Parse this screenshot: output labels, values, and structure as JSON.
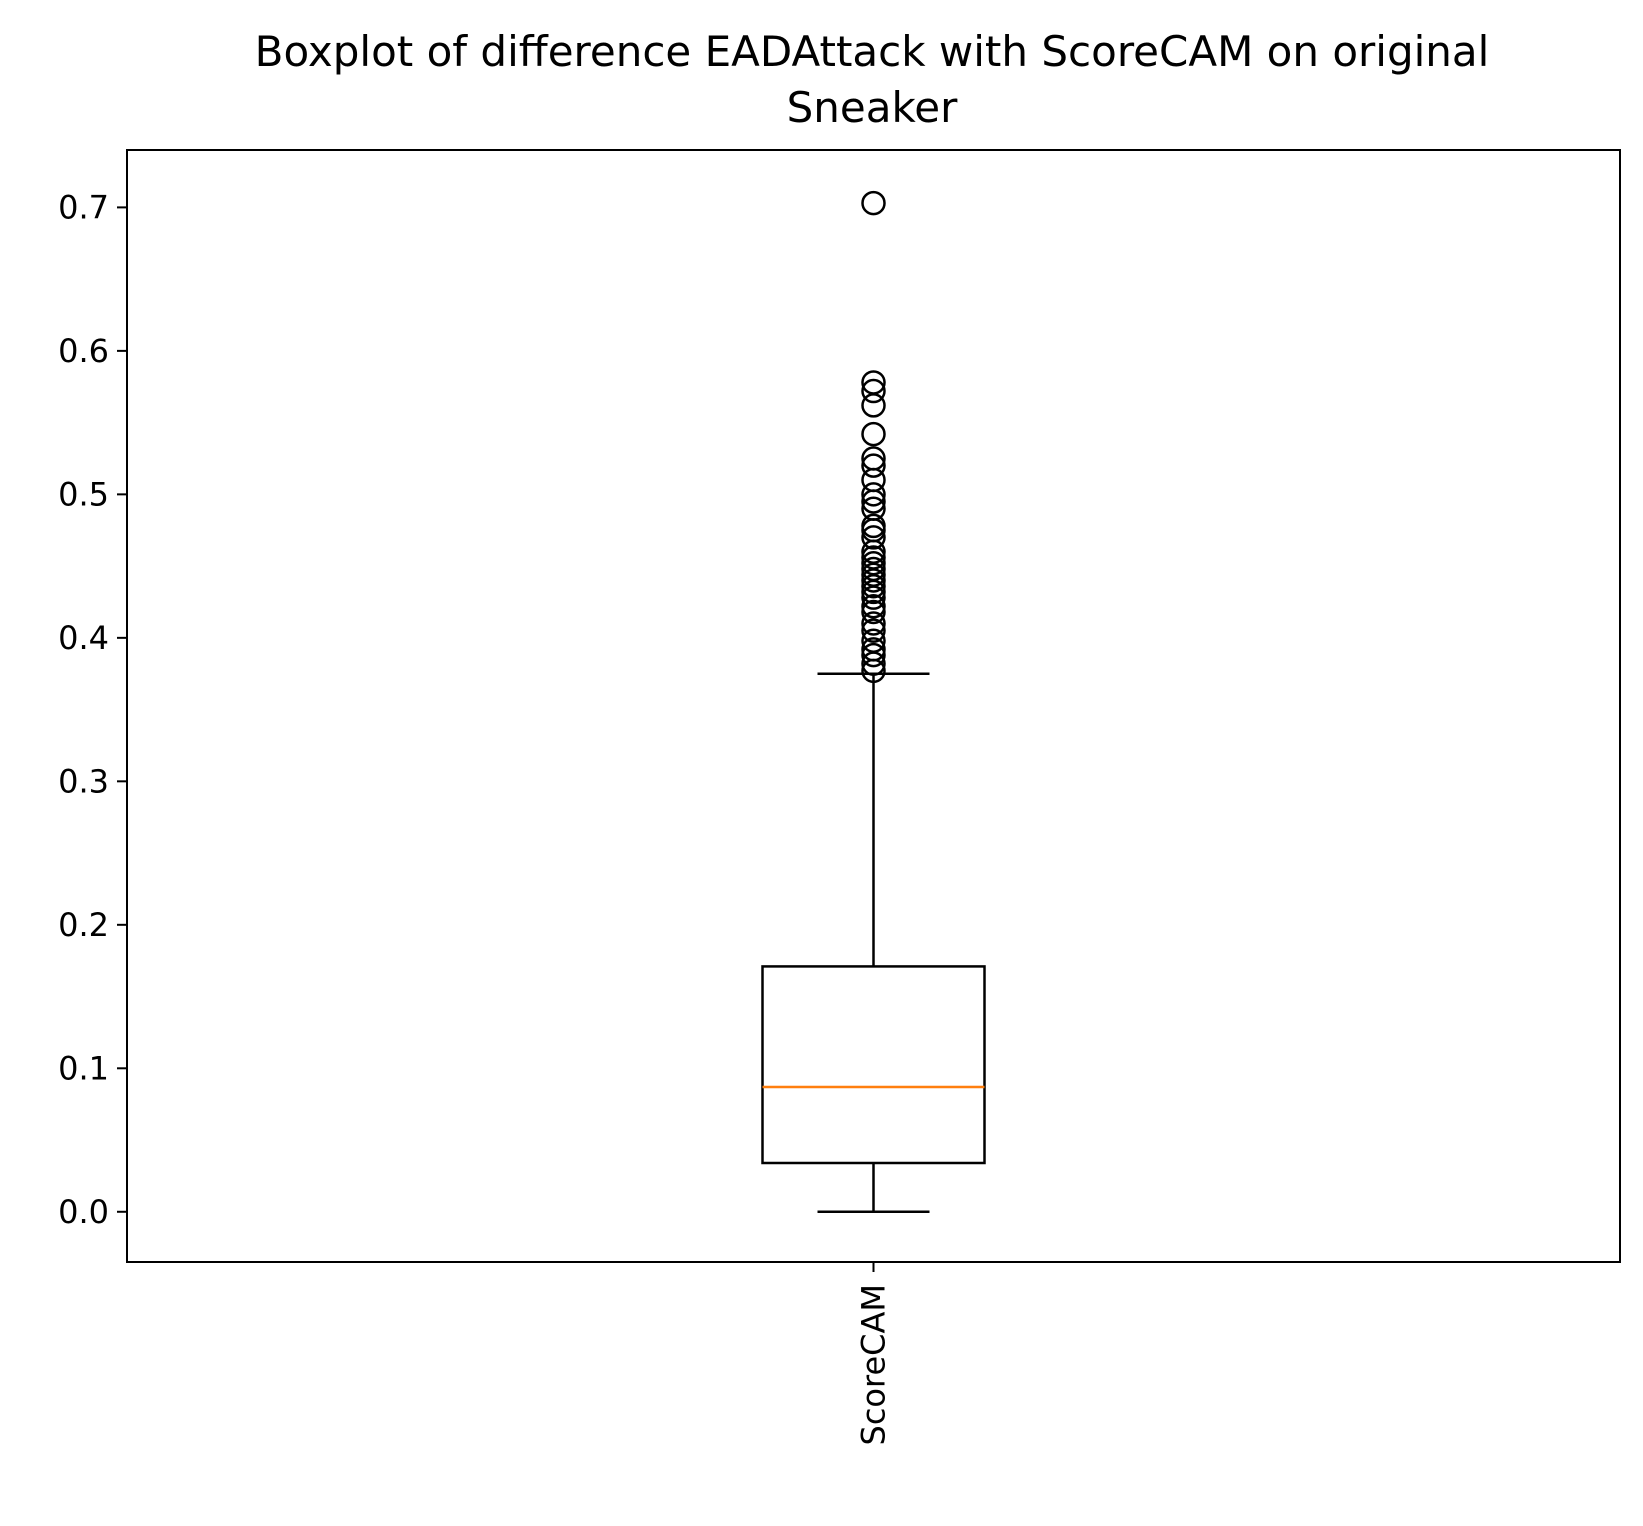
{
  "chart_data": {
    "type": "boxplot",
    "title_line1": "Boxplot of difference EADAttack with ScoreCAM on original",
    "title_line2": "Sneaker",
    "xlabel": "",
    "ylabel": "",
    "categories": [
      "ScoreCAM"
    ],
    "ylim": [
      -0.035,
      0.74
    ],
    "yticks": [
      0.0,
      0.1,
      0.2,
      0.3,
      0.4,
      0.5,
      0.6,
      0.7
    ],
    "ytick_labels": [
      "0.0",
      "0.1",
      "0.2",
      "0.3",
      "0.4",
      "0.5",
      "0.6",
      "0.7"
    ],
    "boxes": [
      {
        "label": "ScoreCAM",
        "whisker_low": 0.0,
        "q1": 0.034,
        "median": 0.087,
        "q3": 0.171,
        "whisker_high": 0.375,
        "outliers": [
          0.377,
          0.382,
          0.388,
          0.392,
          0.398,
          0.405,
          0.41,
          0.418,
          0.422,
          0.428,
          0.432,
          0.436,
          0.44,
          0.444,
          0.448,
          0.452,
          0.456,
          0.46,
          0.47,
          0.475,
          0.478,
          0.49,
          0.495,
          0.5,
          0.51,
          0.52,
          0.525,
          0.542,
          0.562,
          0.572,
          0.578,
          0.703
        ]
      }
    ],
    "grid": false,
    "colors": {
      "box": "#000000",
      "median": "#ff7f0e",
      "outlier": "#000000"
    }
  }
}
